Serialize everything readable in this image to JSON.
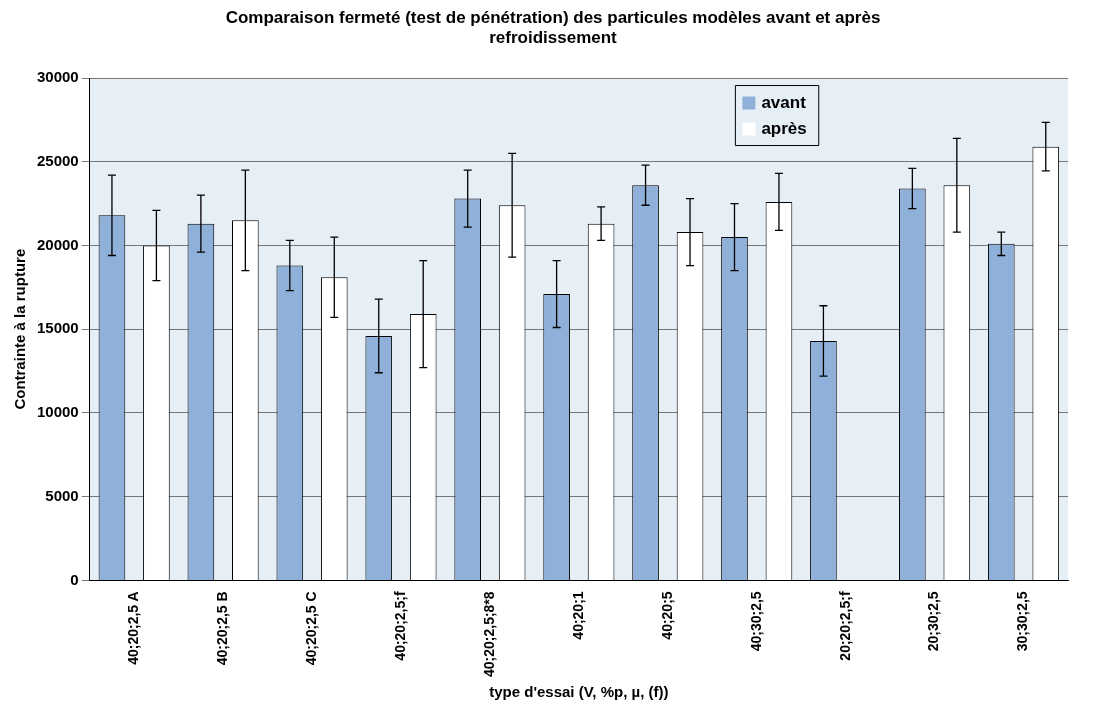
{
  "chart_data": {
    "type": "bar",
    "title": "Comparaison fermeté (test de pénétration) des particules modèles avant et après refroidissement",
    "xlabel": "type d'essai (V, %p, µ, (f))",
    "ylabel": "Contrainte à la rupture",
    "categories": [
      "40;20;2,5 A",
      "40;20;2,5 B",
      "40;20;2,5 C",
      "40;20;2,5;f",
      "40;20;2,5;8*8",
      "40;20;1",
      "40;20;5",
      "40;30;2,5",
      "20;20;2,5;f",
      "20;30;2,5",
      "30;30;2,5"
    ],
    "series": [
      {
        "name": "avant",
        "color": "#8fb0d8",
        "values": [
          21800,
          21300,
          18800,
          14600,
          22800,
          17100,
          23600,
          20500,
          14300,
          23400,
          20100
        ],
        "errors": [
          2400,
          1700,
          1500,
          2200,
          1700,
          2000,
          1200,
          2000,
          2100,
          1200,
          700
        ]
      },
      {
        "name": "après",
        "color": "#ffffff",
        "values": [
          20000,
          21500,
          18100,
          15900,
          22400,
          21300,
          20800,
          22600,
          null,
          23600,
          25900
        ],
        "errors": [
          2100,
          3000,
          2400,
          3200,
          3100,
          1000,
          2000,
          1700,
          null,
          2800,
          1450
        ]
      }
    ],
    "ylim": [
      0,
      30000
    ],
    "yticks": [
      0,
      5000,
      10000,
      15000,
      20000,
      25000,
      30000
    ],
    "grid": "y",
    "legend": "top right"
  }
}
